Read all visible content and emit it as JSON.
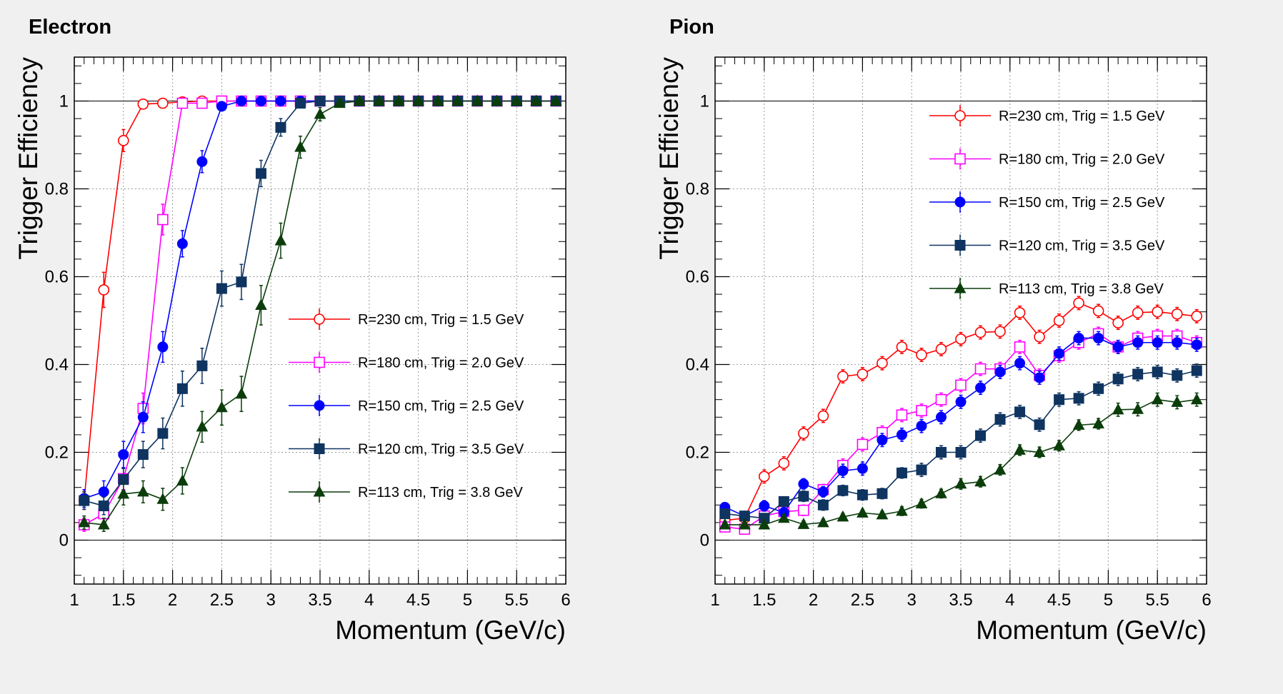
{
  "chart_data": [
    {
      "type": "line",
      "title": "Electron",
      "xlabel": "Momentum (GeV/c)",
      "ylabel": "Trigger Efficiency",
      "xlim": [
        1,
        6
      ],
      "ylim": [
        -0.1,
        1.1
      ],
      "grid": true,
      "legend_position": "center-right",
      "x_ticks": [
        "1",
        "1.5",
        "2",
        "2.5",
        "3",
        "3.5",
        "4",
        "4.5",
        "5",
        "5.5",
        "6"
      ],
      "y_ticks": [
        "0",
        "0.2",
        "0.4",
        "0.6",
        "0.8",
        "1"
      ],
      "x": [
        1.1,
        1.3,
        1.5,
        1.7,
        1.9,
        2.1,
        2.3,
        2.5,
        2.7,
        2.9,
        3.1,
        3.3,
        3.5,
        3.7,
        3.9,
        4.1,
        4.3,
        4.5,
        4.7,
        4.9,
        5.1,
        5.3,
        5.5,
        5.7,
        5.9
      ],
      "series": [
        {
          "name": "R=230 cm, Trig = 1.5 GeV",
          "color": "#ff0000",
          "marker": "open-circle",
          "values": [
            0.09,
            0.57,
            0.91,
            0.993,
            0.995,
            0.998,
            1.0,
            1.0,
            1.0,
            1.0,
            1.0,
            1.0,
            1.0,
            1.0,
            1.0,
            1.0,
            1.0,
            1.0,
            1.0,
            1.0,
            1.0,
            1.0,
            1.0,
            1.0,
            1.0
          ],
          "errors": [
            0.02,
            0.04,
            0.025,
            0.008,
            0.006,
            0.004,
            0.004,
            0.004,
            0.003,
            0.003,
            0.003,
            0.003,
            0.003,
            0.003,
            0.003,
            0.003,
            0.003,
            0.003,
            0.003,
            0.003,
            0.003,
            0.003,
            0.003,
            0.003,
            0.003
          ]
        },
        {
          "name": "R=180 cm, Trig = 2.0 GeV",
          "color": "#ff00ff",
          "marker": "open-square",
          "values": [
            0.035,
            0.06,
            0.14,
            0.3,
            0.73,
            0.995,
            0.995,
            1.0,
            1.0,
            1.0,
            1.0,
            1.0,
            1.0,
            1.0,
            1.0,
            1.0,
            1.0,
            1.0,
            1.0,
            1.0,
            1.0,
            1.0,
            1.0,
            1.0,
            1.0
          ],
          "errors": [
            0.015,
            0.02,
            0.025,
            0.035,
            0.035,
            0.006,
            0.006,
            0.004,
            0.003,
            0.003,
            0.003,
            0.003,
            0.003,
            0.003,
            0.003,
            0.003,
            0.003,
            0.003,
            0.003,
            0.003,
            0.003,
            0.003,
            0.003,
            0.003,
            0.003
          ]
        },
        {
          "name": "R=150 cm, Trig = 2.5 GeV",
          "color": "#0000ff",
          "marker": "circle",
          "values": [
            0.095,
            0.11,
            0.195,
            0.28,
            0.44,
            0.675,
            0.862,
            0.988,
            1.0,
            1.0,
            1.0,
            1.0,
            1.0,
            1.0,
            1.0,
            1.0,
            1.0,
            1.0,
            1.0,
            1.0,
            1.0,
            1.0,
            1.0,
            1.0,
            1.0
          ],
          "errors": [
            0.02,
            0.025,
            0.03,
            0.035,
            0.035,
            0.03,
            0.025,
            0.008,
            0.004,
            0.003,
            0.003,
            0.003,
            0.003,
            0.003,
            0.003,
            0.003,
            0.003,
            0.003,
            0.003,
            0.003,
            0.003,
            0.003,
            0.003,
            0.003,
            0.003
          ]
        },
        {
          "name": "R=120 cm, Trig = 3.5 GeV",
          "color": "#0f3460",
          "marker": "square",
          "values": [
            0.09,
            0.078,
            0.138,
            0.195,
            0.243,
            0.345,
            0.397,
            0.573,
            0.588,
            0.835,
            0.94,
            0.995,
            1.0,
            1.0,
            1.0,
            1.0,
            1.0,
            1.0,
            1.0,
            1.0,
            1.0,
            1.0,
            1.0,
            1.0,
            1.0
          ],
          "errors": [
            0.02,
            0.02,
            0.025,
            0.03,
            0.035,
            0.04,
            0.04,
            0.04,
            0.04,
            0.03,
            0.02,
            0.008,
            0.004,
            0.003,
            0.003,
            0.003,
            0.003,
            0.003,
            0.003,
            0.003,
            0.003,
            0.003,
            0.003,
            0.003,
            0.003
          ]
        },
        {
          "name": "R=113 cm, Trig = 3.8 GeV",
          "color": "#0b3d0b",
          "marker": "triangle",
          "values": [
            0.04,
            0.035,
            0.105,
            0.11,
            0.093,
            0.135,
            0.258,
            0.302,
            0.333,
            0.535,
            0.682,
            0.895,
            0.97,
            0.995,
            1.0,
            1.0,
            1.0,
            1.0,
            1.0,
            1.0,
            1.0,
            1.0,
            1.0,
            1.0,
            1.0
          ],
          "errors": [
            0.015,
            0.015,
            0.025,
            0.025,
            0.025,
            0.03,
            0.035,
            0.04,
            0.04,
            0.045,
            0.04,
            0.025,
            0.015,
            0.006,
            0.003,
            0.003,
            0.003,
            0.003,
            0.003,
            0.003,
            0.003,
            0.003,
            0.003,
            0.003,
            0.003
          ]
        }
      ]
    },
    {
      "type": "line",
      "title": "Pion",
      "xlabel": "Momentum (GeV/c)",
      "ylabel": "Trigger Efficiency",
      "xlim": [
        1,
        6
      ],
      "ylim": [
        -0.1,
        1.1
      ],
      "grid": true,
      "legend_position": "top-right",
      "x_ticks": [
        "1",
        "1.5",
        "2",
        "2.5",
        "3",
        "3.5",
        "4",
        "4.5",
        "5",
        "5.5",
        "6"
      ],
      "y_ticks": [
        "0",
        "0.2",
        "0.4",
        "0.6",
        "0.8",
        "1"
      ],
      "x": [
        1.1,
        1.3,
        1.5,
        1.7,
        1.9,
        2.1,
        2.3,
        2.5,
        2.7,
        2.9,
        3.1,
        3.3,
        3.5,
        3.7,
        3.9,
        4.1,
        4.3,
        4.5,
        4.7,
        4.9,
        5.1,
        5.3,
        5.5,
        5.7,
        5.9
      ],
      "series": [
        {
          "name": "R=230 cm, Trig = 1.5 GeV",
          "color": "#ff0000",
          "marker": "open-circle",
          "values": [
            0.045,
            0.05,
            0.145,
            0.175,
            0.243,
            0.283,
            0.373,
            0.378,
            0.403,
            0.44,
            0.422,
            0.435,
            0.458,
            0.473,
            0.475,
            0.518,
            0.463,
            0.5,
            0.54,
            0.522,
            0.495,
            0.518,
            0.52,
            0.515,
            0.51
          ],
          "errors": [
            0.01,
            0.01,
            0.015,
            0.015,
            0.015,
            0.015,
            0.015,
            0.015,
            0.015,
            0.015,
            0.015,
            0.015,
            0.015,
            0.015,
            0.015,
            0.015,
            0.015,
            0.015,
            0.015,
            0.015,
            0.015,
            0.015,
            0.015,
            0.015,
            0.015
          ]
        },
        {
          "name": "R=180 cm, Trig = 2.0 GeV",
          "color": "#ff00ff",
          "marker": "open-square",
          "values": [
            0.03,
            0.025,
            0.055,
            0.065,
            0.068,
            0.115,
            0.17,
            0.218,
            0.245,
            0.285,
            0.295,
            0.32,
            0.353,
            0.39,
            0.39,
            0.44,
            0.375,
            0.42,
            0.45,
            0.47,
            0.44,
            0.46,
            0.465,
            0.465,
            0.45
          ],
          "errors": [
            0.01,
            0.01,
            0.012,
            0.012,
            0.012,
            0.012,
            0.015,
            0.015,
            0.015,
            0.015,
            0.015,
            0.015,
            0.015,
            0.015,
            0.015,
            0.015,
            0.015,
            0.015,
            0.015,
            0.015,
            0.015,
            0.015,
            0.015,
            0.015,
            0.015
          ]
        },
        {
          "name": "R=150 cm, Trig = 2.5 GeV",
          "color": "#0000ff",
          "marker": "circle",
          "values": [
            0.075,
            0.055,
            0.078,
            0.063,
            0.128,
            0.11,
            0.158,
            0.163,
            0.228,
            0.24,
            0.26,
            0.28,
            0.315,
            0.347,
            0.383,
            0.403,
            0.37,
            0.425,
            0.46,
            0.46,
            0.44,
            0.45,
            0.45,
            0.45,
            0.445
          ],
          "errors": [
            0.01,
            0.01,
            0.012,
            0.012,
            0.012,
            0.012,
            0.015,
            0.015,
            0.015,
            0.015,
            0.015,
            0.015,
            0.015,
            0.015,
            0.015,
            0.015,
            0.015,
            0.015,
            0.015,
            0.015,
            0.015,
            0.015,
            0.015,
            0.015,
            0.015
          ]
        },
        {
          "name": "R=120 cm, Trig = 3.5 GeV",
          "color": "#0f3460",
          "marker": "square",
          "values": [
            0.06,
            0.055,
            0.05,
            0.088,
            0.1,
            0.08,
            0.113,
            0.103,
            0.106,
            0.153,
            0.16,
            0.2,
            0.2,
            0.238,
            0.275,
            0.292,
            0.263,
            0.32,
            0.323,
            0.345,
            0.367,
            0.378,
            0.383,
            0.375,
            0.386
          ],
          "errors": [
            0.01,
            0.01,
            0.01,
            0.01,
            0.012,
            0.012,
            0.012,
            0.012,
            0.012,
            0.012,
            0.015,
            0.015,
            0.015,
            0.015,
            0.015,
            0.015,
            0.015,
            0.015,
            0.015,
            0.015,
            0.015,
            0.015,
            0.015,
            0.015,
            0.015
          ]
        },
        {
          "name": "R=113 cm, Trig = 3.8 GeV",
          "color": "#0b3d0b",
          "marker": "triangle",
          "values": [
            0.035,
            0.035,
            0.035,
            0.05,
            0.036,
            0.04,
            0.053,
            0.062,
            0.058,
            0.066,
            0.083,
            0.106,
            0.128,
            0.133,
            0.16,
            0.205,
            0.2,
            0.215,
            0.262,
            0.265,
            0.297,
            0.298,
            0.32,
            0.314,
            0.32
          ],
          "errors": [
            0.008,
            0.008,
            0.008,
            0.008,
            0.008,
            0.008,
            0.008,
            0.008,
            0.008,
            0.01,
            0.01,
            0.01,
            0.012,
            0.012,
            0.012,
            0.012,
            0.012,
            0.012,
            0.012,
            0.012,
            0.015,
            0.015,
            0.015,
            0.015,
            0.015
          ]
        }
      ]
    }
  ]
}
